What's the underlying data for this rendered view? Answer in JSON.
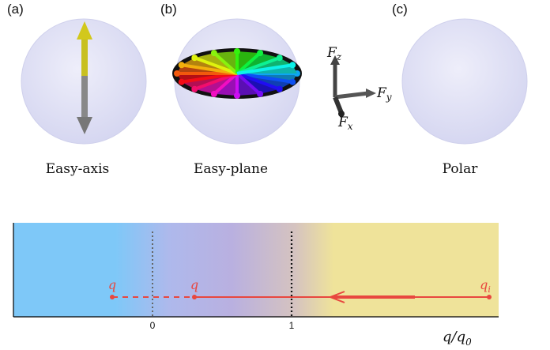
{
  "panels": [
    {
      "letter": "(a)",
      "caption": "Easy-axis"
    },
    {
      "letter": "(b)",
      "caption": "Easy-plane"
    },
    {
      "letter": "(c)",
      "caption": "Polar"
    }
  ],
  "axes": {
    "fz": "F",
    "fz_sub": "z",
    "fy": "F",
    "fy_sub": "y",
    "fx": "F",
    "fx_sub": "x"
  },
  "phase_diagram": {
    "ticks": [
      "0",
      "1"
    ],
    "xlabel": "q/q",
    "xlabel_sub": "0",
    "markers": [
      {
        "label": "q",
        "sub": "",
        "x": -0.3
      },
      {
        "label": "q",
        "sub": "",
        "x": 0.3
      },
      {
        "label": "q",
        "sub": "i",
        "x": 2.4
      }
    ]
  },
  "colors": {
    "sphere": "#dfe0f5",
    "blue_region": "#7ec8f8",
    "purple_region": "#b9b3e0",
    "yellow_region": "#efe39a",
    "trajectory": "#e8473f"
  }
}
